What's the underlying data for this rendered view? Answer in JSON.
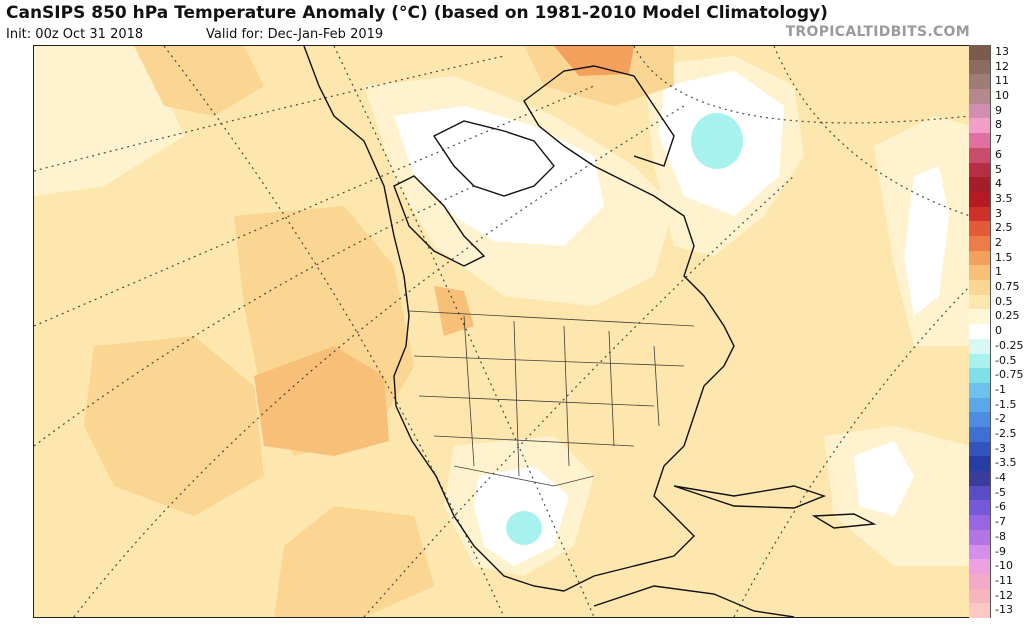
{
  "header": {
    "title": "CanSIPS 850 hPa Temperature Anomaly (°C) (based on 1981-2010 Model Climatology)",
    "init": "Init: 00z Oct 31 2018",
    "valid": "Valid for: Dec-Jan-Feb 2019",
    "source": "TROPICALTIDBITS.COM"
  },
  "legend": {
    "unit": "°C",
    "items": [
      {
        "label": "13",
        "color": "#7a5b4e"
      },
      {
        "label": "12",
        "color": "#8d6b62"
      },
      {
        "label": "11",
        "color": "#a07c78"
      },
      {
        "label": "10",
        "color": "#b3898d"
      },
      {
        "label": "9",
        "color": "#d08fb0"
      },
      {
        "label": "8",
        "color": "#f29ec8"
      },
      {
        "label": "7",
        "color": "#e070a2"
      },
      {
        "label": "6",
        "color": "#c84c6c"
      },
      {
        "label": "5",
        "color": "#b72e44"
      },
      {
        "label": "4",
        "color": "#a61d2a"
      },
      {
        "label": "3.5",
        "color": "#b51a22"
      },
      {
        "label": "3",
        "color": "#d0302c"
      },
      {
        "label": "2.5",
        "color": "#e35a38"
      },
      {
        "label": "2",
        "color": "#ee7b4a"
      },
      {
        "label": "1.5",
        "color": "#f4a05d"
      },
      {
        "label": "1",
        "color": "#f7bf78"
      },
      {
        "label": "0.75",
        "color": "#fad692"
      },
      {
        "label": "0.5",
        "color": "#fde7ae"
      },
      {
        "label": "0.25",
        "color": "#fff6d6"
      },
      {
        "label": "0",
        "color": "#ffffff"
      },
      {
        "label": "-0.25",
        "color": "#d8f8f7"
      },
      {
        "label": "-0.5",
        "color": "#a7f2ef"
      },
      {
        "label": "-0.75",
        "color": "#7fe0ea"
      },
      {
        "label": "-1",
        "color": "#6cc2ec"
      },
      {
        "label": "-1.5",
        "color": "#5ca6ea"
      },
      {
        "label": "-2",
        "color": "#4d8ce0"
      },
      {
        "label": "-2.5",
        "color": "#3f6fd0"
      },
      {
        "label": "-3",
        "color": "#3255bc"
      },
      {
        "label": "-3.5",
        "color": "#263ea4"
      },
      {
        "label": "-4",
        "color": "#3a3c9e"
      },
      {
        "label": "-5",
        "color": "#5a4cc4"
      },
      {
        "label": "-6",
        "color": "#7658d8"
      },
      {
        "label": "-7",
        "color": "#9866e2"
      },
      {
        "label": "-8",
        "color": "#b374e6"
      },
      {
        "label": "-9",
        "color": "#d48fec"
      },
      {
        "label": "-10",
        "color": "#eea1e2"
      },
      {
        "label": "-11",
        "color": "#f2aac8"
      },
      {
        "label": "-12",
        "color": "#f7b5c0"
      },
      {
        "label": "-13",
        "color": "#fbc8c6"
      }
    ]
  },
  "map": {
    "variable": "850 hPa Temperature Anomaly",
    "region": "North America"
  }
}
